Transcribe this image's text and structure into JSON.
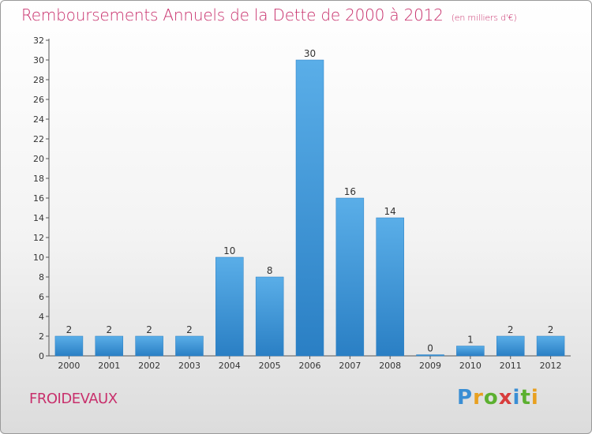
{
  "page": {
    "title": "Remboursements Annuels de la Dette de 2000 à 2012",
    "subtitle": "(en milliers d'€)",
    "commune": "FROIDEVAUX",
    "logo_text": "Proxiti"
  },
  "colors": {
    "title": "#c8306c",
    "bar_light": "#5aaee8",
    "bar_dark": "#2a7fc4",
    "logo": [
      "#3a8ed4",
      "#e8a020",
      "#5cb030",
      "#d83c3c",
      "#3a8ed4",
      "#5cb030",
      "#e8a020"
    ]
  },
  "chart_data": {
    "type": "bar",
    "title": "Remboursements Annuels de la Dette de 2000 à 2012",
    "subtitle": "(en milliers d'€)",
    "categories": [
      "2000",
      "2001",
      "2002",
      "2003",
      "2004",
      "2005",
      "2006",
      "2007",
      "2008",
      "2009",
      "2010",
      "2011",
      "2012"
    ],
    "values": [
      2,
      2,
      2,
      2,
      10,
      8,
      30,
      16,
      14,
      0,
      1,
      2,
      2
    ],
    "value_labels": [
      "2",
      "2",
      "2",
      "2",
      "10",
      "8",
      "30",
      "16",
      "14",
      "0",
      "1",
      "2",
      "2"
    ],
    "ylim": [
      0,
      32
    ],
    "yticks": [
      0,
      2,
      4,
      6,
      8,
      10,
      12,
      14,
      16,
      18,
      20,
      22,
      24,
      26,
      28,
      30,
      32
    ],
    "xlabel": "",
    "ylabel": "",
    "grid": false,
    "legend": "none"
  }
}
